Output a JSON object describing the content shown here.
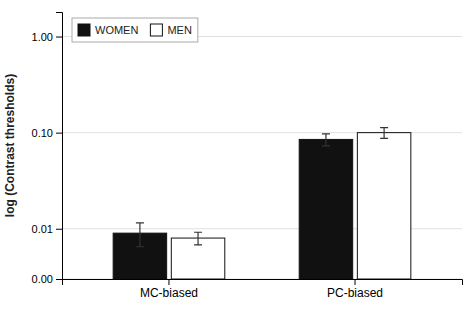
{
  "chart_data": {
    "type": "bar",
    "ylabel": "log (Contrast thresholds)",
    "categories": [
      "MC-biased",
      "PC-biased"
    ],
    "series": [
      {
        "name": "WOMEN",
        "color": "#111111",
        "values": [
          0.009,
          0.085
        ],
        "errors": [
          0.0025,
          0.012
        ]
      },
      {
        "name": "MEN",
        "color": "#ffffff",
        "values": [
          0.008,
          0.1
        ],
        "errors": [
          0.0012,
          0.013
        ]
      }
    ],
    "log": "y",
    "ylim": [
      0.003,
      1.8
    ],
    "yticks": [
      {
        "value": 0.003,
        "label": "0.00"
      },
      0.01,
      {
        "value": 0.1,
        "label": "0.10"
      },
      {
        "value": 1.0,
        "label": "1.00"
      }
    ],
    "grid": true,
    "legend": "upper left"
  }
}
